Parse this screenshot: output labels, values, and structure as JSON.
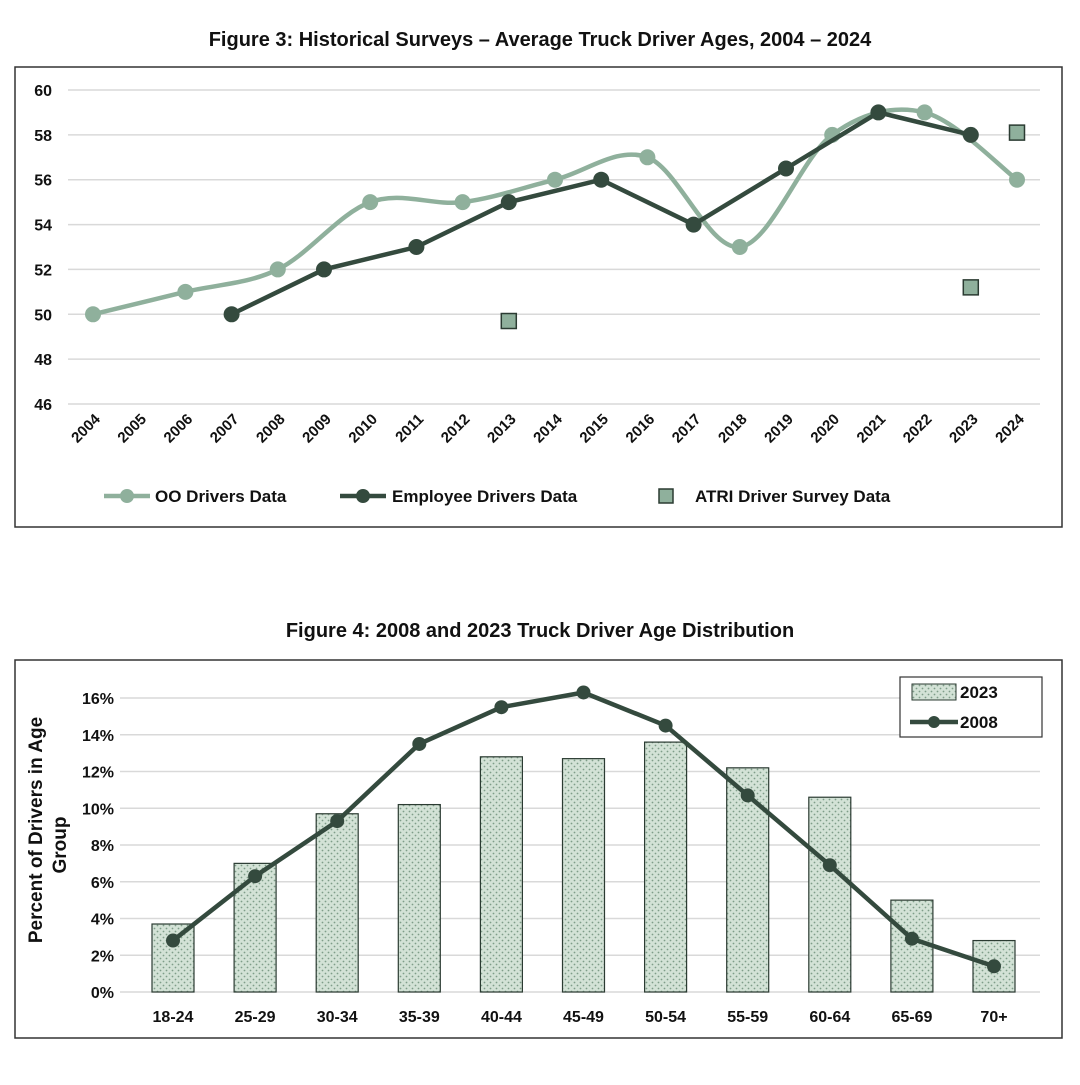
{
  "colors": {
    "oo": "#8fb09c",
    "employee": "#344a3e",
    "atri": "#8fb09c",
    "bar_fill": "#d3e2d6",
    "grid": "#d9d9d9"
  },
  "chart_data": [
    {
      "type": "line",
      "title": "Figure 3: Historical Surveys – Average Truck Driver Ages, 2004 – 2024",
      "xlabel": "",
      "ylabel": "",
      "x_ticks": [
        "2004",
        "2005",
        "2006",
        "2007",
        "2008",
        "2009",
        "2010",
        "2011",
        "2012",
        "2013",
        "2014",
        "2015",
        "2016",
        "2017",
        "2018",
        "2019",
        "2020",
        "2021",
        "2022",
        "2023",
        "2024"
      ],
      "ylim": [
        46,
        60
      ],
      "y_ticks": [
        46,
        48,
        50,
        52,
        54,
        56,
        58,
        60
      ],
      "grid": true,
      "legend_position": "bottom",
      "series": [
        {
          "name": "OO Drivers Data",
          "style": "smooth-line-circle",
          "points": [
            [
              2004,
              50
            ],
            [
              2006,
              51
            ],
            [
              2008,
              52
            ],
            [
              2010,
              55
            ],
            [
              2012,
              55
            ],
            [
              2014,
              56
            ],
            [
              2016,
              57
            ],
            [
              2018,
              53
            ],
            [
              2020,
              58
            ],
            [
              2022,
              59
            ],
            [
              2024,
              56
            ]
          ]
        },
        {
          "name": "Employee Drivers Data",
          "style": "line-circle",
          "points": [
            [
              2007,
              50
            ],
            [
              2009,
              52
            ],
            [
              2011,
              53
            ],
            [
              2013,
              55
            ],
            [
              2015,
              56
            ],
            [
              2017,
              54
            ],
            [
              2019,
              56.5
            ],
            [
              2021,
              59
            ],
            [
              2023,
              58
            ]
          ]
        },
        {
          "name": "ATRI Driver Survey Data",
          "style": "square-marker",
          "points": [
            [
              2013,
              49.7
            ],
            [
              2023,
              51.2
            ],
            [
              2024,
              58.1
            ]
          ]
        }
      ]
    },
    {
      "type": "bar",
      "title": "Figure 4: 2008 and 2023 Truck Driver Age Distribution",
      "xlabel": "",
      "ylabel": "Percent of Drivers in Age Group",
      "categories": [
        "18-24",
        "25-29",
        "30-34",
        "35-39",
        "40-44",
        "45-49",
        "50-54",
        "55-59",
        "60-64",
        "65-69",
        "70+"
      ],
      "ylim": [
        0,
        16
      ],
      "y_ticks": [
        "0%",
        "2%",
        "4%",
        "6%",
        "8%",
        "10%",
        "12%",
        "14%",
        "16%"
      ],
      "grid": true,
      "legend_position": "top-right",
      "series": [
        {
          "name": "2023",
          "type": "bar",
          "values": [
            3.7,
            7.0,
            9.7,
            10.2,
            12.8,
            12.7,
            13.6,
            12.2,
            10.6,
            5.0,
            2.8
          ]
        },
        {
          "name": "2008",
          "type": "line",
          "values": [
            2.8,
            6.3,
            9.3,
            13.5,
            15.5,
            16.3,
            14.5,
            10.7,
            6.9,
            2.9,
            1.4
          ]
        }
      ]
    }
  ]
}
